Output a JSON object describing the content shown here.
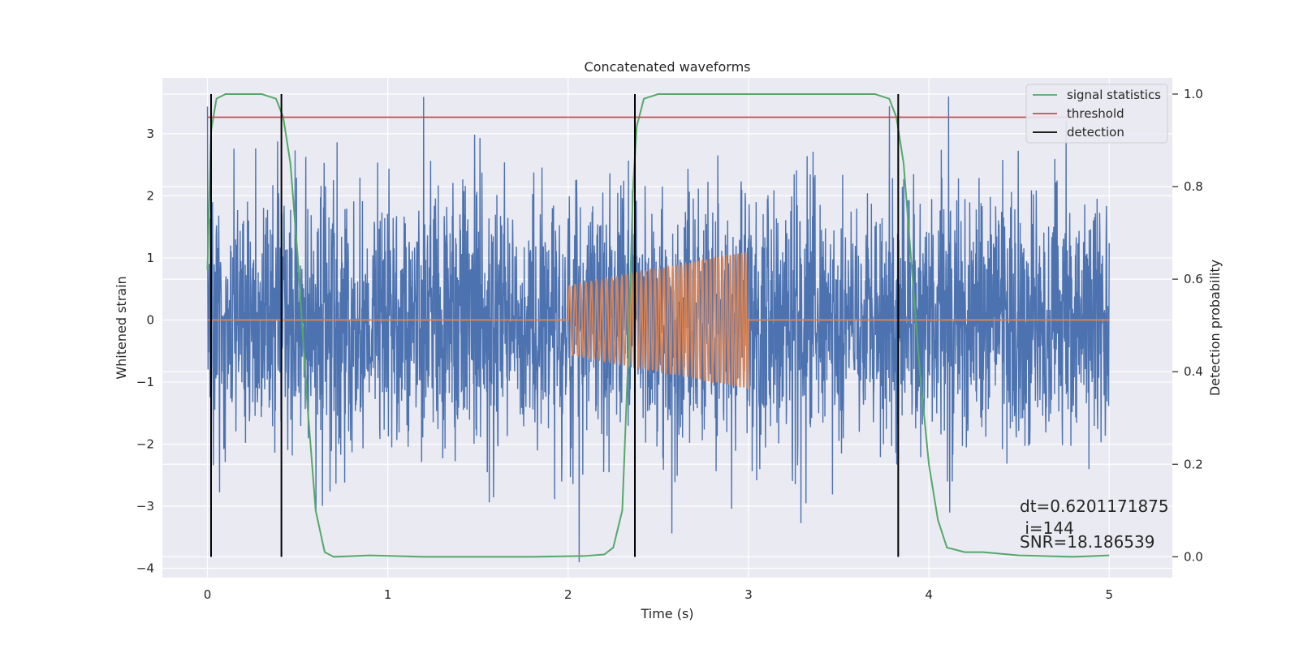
{
  "chart_data": {
    "type": "line",
    "title": "Concatenated waveforms",
    "xlabel": "Time (s)",
    "ylabel": "Whitened strain",
    "y2label": "Detection probability",
    "xlim": [
      -0.25,
      5.35
    ],
    "ylim": [
      -4.15,
      3.9
    ],
    "y2lim": [
      -0.045,
      1.035
    ],
    "xticks": [
      0,
      1,
      2,
      3,
      4,
      5
    ],
    "yticks": [
      -4,
      -3,
      -2,
      -1,
      0,
      1,
      2,
      3
    ],
    "y2ticks": [
      0.0,
      0.2,
      0.4,
      0.6,
      0.8,
      1.0
    ],
    "xtick_labels": [
      "0",
      "1",
      "2",
      "3",
      "4",
      "5"
    ],
    "ytick_labels": [
      "−4",
      "−3",
      "−2",
      "−1",
      "0",
      "1",
      "2",
      "3"
    ],
    "y2tick_labels": [
      "0.0",
      "0.2",
      "0.4",
      "0.6",
      "0.8",
      "1.0"
    ],
    "grid": true,
    "legend_position": "top-right",
    "colors": {
      "noise": "#4c72b0",
      "injection": "#dd8452",
      "signal_statistics": "#55a868",
      "threshold": "#c44e52",
      "detection": "#000000",
      "background": "#eaeaf2"
    },
    "series": [
      {
        "name": "signal statistics",
        "axis": "right",
        "x": [
          0.0,
          0.02,
          0.05,
          0.1,
          0.3,
          0.38,
          0.42,
          0.46,
          0.5,
          0.55,
          0.6,
          0.65,
          0.7,
          0.9,
          1.2,
          1.8,
          2.1,
          2.2,
          2.25,
          2.3,
          2.33,
          2.36,
          2.38,
          2.42,
          2.5,
          3.0,
          3.7,
          3.78,
          3.82,
          3.86,
          3.9,
          3.95,
          4.0,
          4.05,
          4.1,
          4.2,
          4.3,
          4.5,
          4.8,
          5.0
        ],
        "y": [
          0.62,
          0.92,
          0.99,
          1.0,
          1.0,
          0.99,
          0.95,
          0.85,
          0.65,
          0.35,
          0.1,
          0.01,
          0.0,
          0.003,
          0.0,
          0.0,
          0.002,
          0.005,
          0.02,
          0.1,
          0.4,
          0.8,
          0.93,
          0.99,
          1.0,
          1.0,
          1.0,
          0.99,
          0.95,
          0.85,
          0.65,
          0.4,
          0.2,
          0.08,
          0.02,
          0.01,
          0.01,
          0.003,
          0.0,
          0.003
        ]
      },
      {
        "name": "threshold",
        "axis": "right",
        "x": [
          0.0,
          5.0
        ],
        "y": [
          0.95,
          0.95
        ]
      },
      {
        "name": "detection",
        "axis": "right",
        "x": [
          0.02,
          0.41,
          2.37,
          3.83
        ],
        "y_range": [
          0.0,
          1.0
        ]
      }
    ],
    "noise_trace": {
      "axis": "left",
      "x_range": [
        0.0,
        5.0
      ],
      "typical_amplitude": 1.0,
      "max": 3.6,
      "min": -3.9
    },
    "injection_trace": {
      "axis": "left",
      "x_range": [
        2.0,
        3.0
      ],
      "amp_start": 0.55,
      "amp_end": 1.1,
      "freq_start_hz": 32,
      "freq_end_hz": 48
    },
    "annotation": {
      "lines": [
        "dt=0.6201171875",
        " i=144",
        "SNR=18.186539"
      ],
      "data_position": [
        4.5,
        -3.05
      ]
    }
  }
}
